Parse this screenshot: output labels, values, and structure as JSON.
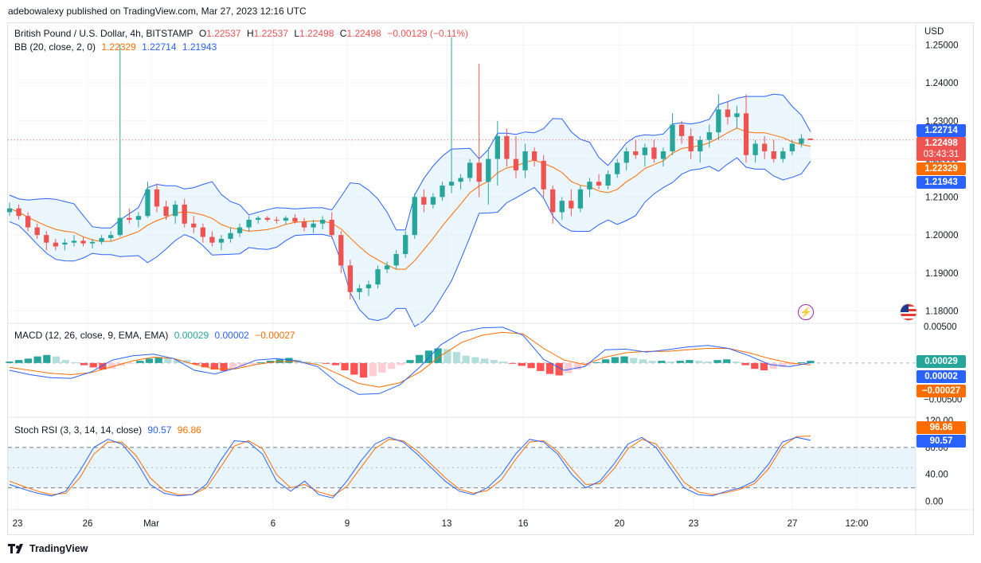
{
  "header": {
    "published": "adebowalexy published on TradingView.com, Mar 27, 2023 12:16 UTC"
  },
  "legend": {
    "symbol": "British Pound / U.S. Dollar, 4h, BITSTAMP",
    "o_label": "O",
    "o": "1.22537",
    "h_label": "H",
    "h": "1.22537",
    "l_label": "L",
    "l": "1.22498",
    "c_label": "C",
    "c": "1.22498",
    "change": "−0.00129 (−0.11%)",
    "bb_label": "BB (20, close, 2, 0)",
    "bb_basis": "1.22329",
    "bb_upper": "1.22714",
    "bb_lower": "1.21943",
    "macd_label": "MACD (12, 26, close, 9, EMA, EMA)",
    "macd_hist": "0.00029",
    "macd_line": "0.00002",
    "macd_signal": "−0.00027",
    "stoch_label": "Stoch RSI (3, 3, 14, 14, close)",
    "stoch_k": "90.57",
    "stoch_d": "96.86"
  },
  "price_axis": {
    "currency": "USD",
    "ticks": [
      "1.25000",
      "1.24000",
      "1.23000",
      "1.22000",
      "1.21000",
      "1.20000",
      "1.19000",
      "1.18000"
    ],
    "tag_upper": "1.22714",
    "tag_close": "1.22498",
    "tag_countdown": "03:43:31",
    "tag_basis": "1.22329",
    "tag_lower": "1.21943"
  },
  "macd_axis": {
    "ticks": [
      "0.00500",
      "−0.00500"
    ],
    "tag_hist": "0.00029",
    "tag_macd": "0.00002",
    "tag_signal": "−0.00027"
  },
  "stoch_axis": {
    "ticks": [
      "120.00",
      "80.00",
      "40.00",
      "0.00"
    ],
    "tag_d": "96.86",
    "tag_k": "90.57"
  },
  "time_axis": {
    "labels": [
      "23",
      "26",
      "Mar",
      "6",
      "9",
      "13",
      "16",
      "20",
      "23",
      "27",
      "12:00"
    ]
  },
  "footer": {
    "brand": "TradingView"
  },
  "colors": {
    "up": "#26a69a",
    "down": "#ef5350",
    "bb_band": "#2962ff",
    "bb_basis": "#ff6d00",
    "band_fill": "#e3f2fd",
    "macd_line": "#2962ff",
    "signal_line": "#ff6d00",
    "hist_up_strong": "#26a69a",
    "hist_up_weak": "#b2dfdb",
    "hist_down_strong": "#ff5252",
    "hist_down_weak": "#ffcdd2",
    "grid": "#f0f3fa"
  },
  "icons": {
    "flash": "lightning-icon",
    "flag": "us-flag-icon",
    "logo": "tradingview-logo-icon"
  },
  "chart_data": [
    {
      "type": "candlestick",
      "title": "British Pound / U.S. Dollar, 4h, BITSTAMP",
      "ylabel": "USD",
      "ylim": [
        1.177,
        1.2555
      ],
      "overlays": [
        "Bollinger Bands (20, close, 2, 0)"
      ],
      "last": {
        "open": 1.22537,
        "high": 1.22537,
        "low": 1.22498,
        "close": 1.22498,
        "bb_basis": 1.22329,
        "bb_upper": 1.22714,
        "bb_lower": 1.21943
      },
      "ohlc_sample": [
        [
          1.206,
          1.2085,
          1.205,
          1.207
        ],
        [
          1.207,
          1.208,
          1.204,
          1.205
        ],
        [
          1.205,
          1.206,
          1.201,
          1.202
        ],
        [
          1.202,
          1.203,
          1.199,
          1.2
        ],
        [
          1.2,
          1.201,
          1.196,
          1.198
        ],
        [
          1.198,
          1.199,
          1.196,
          1.197
        ],
        [
          1.1975,
          1.199,
          1.196,
          1.198
        ],
        [
          1.198,
          1.2,
          1.197,
          1.1985
        ],
        [
          1.1985,
          1.1995,
          1.197,
          1.1978
        ],
        [
          1.1978,
          1.199,
          1.1965,
          1.1982
        ],
        [
          1.1982,
          1.2,
          1.1975,
          1.1992
        ],
        [
          1.1992,
          1.201,
          1.1985,
          1.2
        ],
        [
          1.2,
          1.25,
          1.1995,
          1.2045
        ],
        [
          1.2045,
          1.207,
          1.203,
          1.204
        ],
        [
          1.204,
          1.206,
          1.202,
          1.205
        ],
        [
          1.205,
          1.214,
          1.2045,
          1.212
        ],
        [
          1.212,
          1.2135,
          1.206,
          1.2075
        ],
        [
          1.2075,
          1.209,
          1.204,
          1.205
        ],
        [
          1.205,
          1.209,
          1.203,
          1.208
        ],
        [
          1.208,
          1.2095,
          1.202,
          1.203
        ],
        [
          1.203,
          1.205,
          1.2005,
          1.202
        ],
        [
          1.202,
          1.203,
          1.198,
          1.1995
        ],
        [
          1.1995,
          1.201,
          1.197,
          1.198
        ],
        [
          1.198,
          1.2,
          1.196,
          1.199
        ],
        [
          1.199,
          1.202,
          1.198,
          1.2005
        ],
        [
          1.2005,
          1.203,
          1.1995,
          1.202
        ],
        [
          1.202,
          1.205,
          1.201,
          1.204
        ],
        [
          1.204,
          1.205,
          1.203,
          1.2045
        ],
        [
          1.2045,
          1.205,
          1.2035,
          1.204
        ],
        [
          1.204,
          1.2048,
          1.203,
          1.2038
        ],
        [
          1.2038,
          1.205,
          1.2028,
          1.2045
        ],
        [
          1.2045,
          1.2055,
          1.203,
          1.2035
        ],
        [
          1.2035,
          1.2045,
          1.201,
          1.202
        ],
        [
          1.202,
          1.204,
          1.2005,
          1.203
        ],
        [
          1.203,
          1.205,
          1.2015,
          1.204
        ],
        [
          1.204,
          1.206,
          1.199,
          1.2
        ],
        [
          1.2,
          1.201,
          1.19,
          1.192
        ],
        [
          1.192,
          1.1935,
          1.183,
          1.185
        ],
        [
          1.185,
          1.187,
          1.183,
          1.186
        ],
        [
          1.186,
          1.188,
          1.184,
          1.187
        ],
        [
          1.187,
          1.192,
          1.186,
          1.191
        ],
        [
          1.191,
          1.193,
          1.19,
          1.192
        ],
        [
          1.192,
          1.196,
          1.191,
          1.195
        ],
        [
          1.195,
          1.201,
          1.194,
          1.2
        ],
        [
          1.2,
          1.211,
          1.199,
          1.21
        ],
        [
          1.21,
          1.212,
          1.206,
          1.208
        ],
        [
          1.208,
          1.211,
          1.207,
          1.21
        ],
        [
          1.21,
          1.214,
          1.209,
          1.213
        ],
        [
          1.213,
          1.252,
          1.211,
          1.214
        ],
        [
          1.214,
          1.216,
          1.212,
          1.215
        ],
        [
          1.215,
          1.22,
          1.214,
          1.219
        ],
        [
          1.219,
          1.245,
          1.21,
          1.214
        ],
        [
          1.214,
          1.223,
          1.208,
          1.22
        ],
        [
          1.22,
          1.23,
          1.213,
          1.226
        ],
        [
          1.226,
          1.228,
          1.218,
          1.22
        ],
        [
          1.22,
          1.226,
          1.215,
          1.217
        ],
        [
          1.217,
          1.224,
          1.215,
          1.222
        ],
        [
          1.222,
          1.223,
          1.218,
          1.2195
        ],
        [
          1.2195,
          1.221,
          1.21,
          1.212
        ],
        [
          1.212,
          1.213,
          1.203,
          1.206
        ],
        [
          1.206,
          1.21,
          1.204,
          1.209
        ],
        [
          1.209,
          1.212,
          1.205,
          1.207
        ],
        [
          1.207,
          1.213,
          1.206,
          1.212
        ],
        [
          1.212,
          1.215,
          1.21,
          1.214
        ],
        [
          1.214,
          1.216,
          1.212,
          1.213
        ],
        [
          1.213,
          1.217,
          1.212,
          1.216
        ],
        [
          1.216,
          1.22,
          1.215,
          1.219
        ],
        [
          1.219,
          1.223,
          1.217,
          1.222
        ],
        [
          1.222,
          1.225,
          1.22,
          1.221
        ],
        [
          1.221,
          1.224,
          1.218,
          1.223
        ],
        [
          1.223,
          1.225,
          1.219,
          1.22
        ],
        [
          1.22,
          1.223,
          1.218,
          1.222
        ],
        [
          1.222,
          1.232,
          1.221,
          1.229
        ],
        [
          1.229,
          1.23,
          1.224,
          1.226
        ],
        [
          1.226,
          1.228,
          1.22,
          1.222
        ],
        [
          1.222,
          1.226,
          1.219,
          1.225
        ],
        [
          1.225,
          1.229,
          1.223,
          1.227
        ],
        [
          1.227,
          1.237,
          1.225,
          1.233
        ],
        [
          1.233,
          1.235,
          1.229,
          1.231
        ],
        [
          1.231,
          1.234,
          1.228,
          1.232
        ],
        [
          1.232,
          1.237,
          1.219,
          1.221
        ],
        [
          1.221,
          1.225,
          1.219,
          1.224
        ],
        [
          1.224,
          1.226,
          1.22,
          1.222
        ],
        [
          1.222,
          1.225,
          1.219,
          1.22
        ],
        [
          1.22,
          1.223,
          1.219,
          1.222
        ],
        [
          1.222,
          1.225,
          1.221,
          1.224
        ],
        [
          1.224,
          1.2265,
          1.223,
          1.2254
        ],
        [
          1.22537,
          1.22537,
          1.22498,
          1.22498
        ]
      ]
    },
    {
      "type": "line",
      "title": "MACD (12, 26, close, 9, EMA, EMA)",
      "ylim": [
        -0.007,
        0.005
      ],
      "last": {
        "histogram": 0.00029,
        "macd": 2e-05,
        "signal": -0.00027
      },
      "histogram_sample": [
        0.0002,
        0.0004,
        0.0006,
        0.0009,
        0.0011,
        0.0009,
        0.0004,
        0.0001,
        -0.0003,
        -0.0006,
        -0.0009,
        -0.0008,
        -0.0004,
        -0.0001,
        0.0003,
        0.0006,
        0.0008,
        0.0007,
        0.0005,
        0.0004,
        -0.0002,
        -0.0006,
        -0.0009,
        -0.0011,
        -0.0008,
        -0.0005,
        -0.0002,
        0.0001,
        0.0003,
        0.0005,
        0.0007,
        0.0004,
        0.0002,
        0.0001,
        -0.0001,
        -0.0003,
        -0.001,
        -0.0016,
        -0.002,
        -0.0018,
        -0.0013,
        -0.0008,
        -0.0003,
        0.0004,
        0.0011,
        0.0017,
        0.002,
        0.0019,
        0.0015,
        0.001,
        0.0008,
        0.0006,
        0.0004,
        0.0002,
        -0.0001,
        -0.0004,
        -0.0007,
        -0.0011,
        -0.0015,
        -0.0017,
        -0.0014,
        -0.0009,
        -0.0004,
        0.0001,
        0.0005,
        0.0008,
        0.0009,
        0.0007,
        0.0005,
        0.0003,
        0.0003,
        0.0002,
        0.0003,
        0.0004,
        0.0003,
        0.0002,
        0.0004,
        0.0005,
        0.0002,
        -0.0003,
        -0.0008,
        -0.001,
        -0.0008,
        -0.0006,
        -0.0003,
        0.0001,
        0.0003
      ],
      "macd_sample": [
        -0.001,
        -0.0016,
        -0.002,
        -0.0021,
        -0.0012,
        0.0004,
        0.001,
        0.0012,
        0.0006,
        -0.001,
        -0.0015,
        -0.0007,
        0.0004,
        0.0006,
        0.0003,
        -0.0005,
        -0.0028,
        -0.0043,
        -0.0042,
        -0.003,
        -0.0005,
        0.0025,
        0.0042,
        0.0048,
        0.0049,
        0.0038,
        0.0005,
        -0.001,
        -0.0005,
        0.0018,
        0.0019,
        0.0015,
        0.0018,
        0.0022,
        0.0024,
        0.002,
        0.001,
        -0.0002,
        -0.0005,
        2e-05
      ],
      "signal_sample": [
        -0.0006,
        -0.001,
        -0.0014,
        -0.0016,
        -0.0013,
        -0.0005,
        0.0003,
        0.0008,
        0.0006,
        -0.0002,
        -0.0008,
        -0.0008,
        -0.0002,
        0.0002,
        0.0002,
        -0.0002,
        -0.0015,
        -0.0028,
        -0.0033,
        -0.0027,
        -0.0012,
        0.001,
        0.0028,
        0.0038,
        0.0042,
        0.004,
        0.002,
        0.0004,
        -0.0002,
        0.0008,
        0.0014,
        0.0016,
        0.0016,
        0.0018,
        0.002,
        0.002,
        0.0014,
        0.0006,
        0.0,
        -0.00027
      ]
    },
    {
      "type": "line",
      "title": "Stoch RSI (3, 3, 14, 14, close)",
      "ylim": [
        -10,
        120
      ],
      "bands": [
        80,
        50,
        20
      ],
      "last": {
        "k": 90.57,
        "d": 96.86
      },
      "k_sample": [
        25,
        18,
        12,
        8,
        15,
        45,
        80,
        92,
        85,
        60,
        25,
        12,
        8,
        10,
        25,
        60,
        90,
        88,
        70,
        30,
        15,
        30,
        10,
        5,
        30,
        60,
        85,
        95,
        88,
        70,
        50,
        30,
        15,
        10,
        20,
        40,
        70,
        92,
        88,
        70,
        40,
        20,
        30,
        55,
        85,
        95,
        80,
        50,
        20,
        10,
        8,
        15,
        20,
        30,
        55,
        88,
        95,
        90.57
      ],
      "d_sample": [
        30,
        22,
        15,
        10,
        12,
        35,
        70,
        88,
        88,
        68,
        35,
        16,
        10,
        10,
        20,
        50,
        82,
        90,
        78,
        40,
        20,
        25,
        14,
        8,
        22,
        50,
        78,
        92,
        90,
        75,
        55,
        35,
        18,
        12,
        16,
        32,
        62,
        88,
        90,
        74,
        48,
        25,
        26,
        48,
        78,
        92,
        85,
        58,
        28,
        14,
        10,
        13,
        18,
        26,
        48,
        82,
        96,
        96.86
      ]
    }
  ]
}
